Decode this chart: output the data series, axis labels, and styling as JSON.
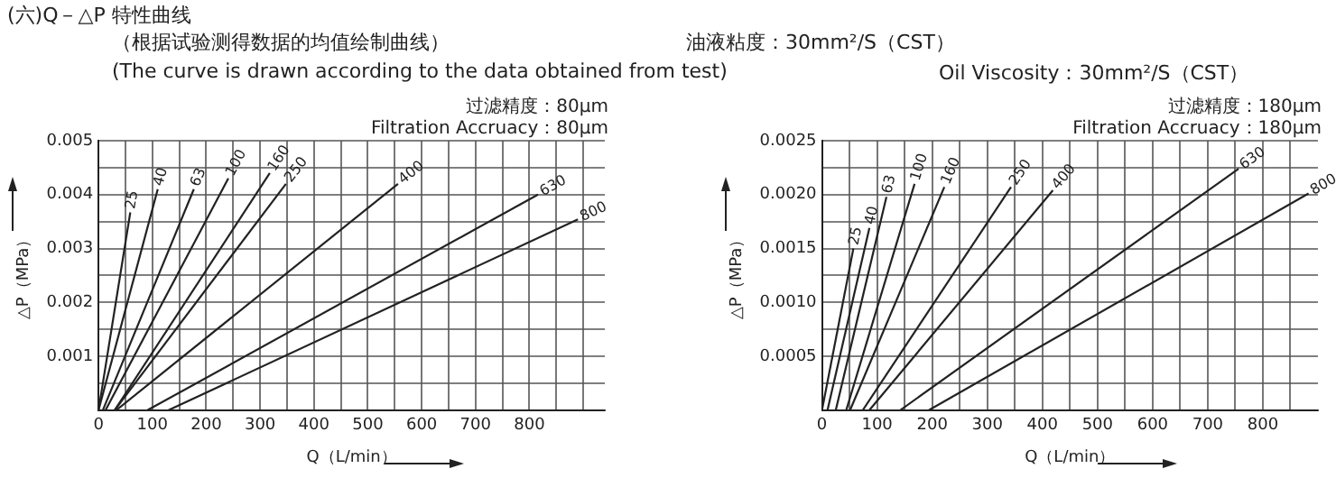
{
  "chart_data": [
    {
      "type": "line",
      "title": "(六)Q－△P 特性曲线",
      "subtitle": "过滤精度：80μm",
      "xlabel": "Q（L/min）",
      "ylabel": "△P（MPa）",
      "grid": true,
      "legend": false,
      "marker": "none",
      "annotations": [
        "（根据试验测得数据的均值绘制曲线）",
        "油液粘度：30mm²/S（CST）",
        "(The curve is drawn according to the data obtained from test)",
        "Oil Viscosity：30mm²/S（CST）",
        "Filtration Accruacy：80μm"
      ],
      "xlim": [
        0,
        940
      ],
      "ylim": [
        0,
        0.005
      ],
      "xticks": [
        0,
        {
          "value": 50,
          "label": null
        },
        100,
        {
          "value": 150,
          "label": null
        },
        200,
        {
          "value": 250,
          "label": null
        },
        300,
        {
          "value": 350,
          "label": null
        },
        400,
        {
          "value": 450,
          "label": null
        },
        500,
        {
          "value": 550,
          "label": null
        },
        600,
        {
          "value": 650,
          "label": null
        },
        700,
        {
          "value": 750,
          "label": null
        },
        800,
        {
          "value": 850,
          "label": null
        },
        {
          "value": 900,
          "label": null
        }
      ],
      "yticks": [
        {
          "value": 0,
          "label": null
        },
        {
          "value": 0.0005,
          "label": null
        },
        0.001,
        {
          "value": 0.0015,
          "label": null
        },
        0.002,
        {
          "value": 0.0025,
          "label": null
        },
        0.003,
        {
          "value": 0.0035,
          "label": null
        },
        0.004,
        {
          "value": 0.0045,
          "label": null
        },
        0.005
      ],
      "series": [
        {
          "name": "25",
          "color": "#222222",
          "x": [
            0,
            59
          ],
          "values": [
            0,
            0.00367
          ]
        },
        {
          "name": "40",
          "color": "#222222",
          "x": [
            0,
            110
          ],
          "values": [
            0,
            0.0041
          ]
        },
        {
          "name": "63",
          "color": "#222222",
          "x": [
            8,
            177
          ],
          "values": [
            0,
            0.0041
          ]
        },
        {
          "name": "100",
          "color": "#222222",
          "x": [
            13,
            241
          ],
          "values": [
            0,
            0.0043
          ]
        },
        {
          "name": "160",
          "color": "#222222",
          "x": [
            30,
            318
          ],
          "values": [
            0,
            0.0044
          ]
        },
        {
          "name": "250",
          "color": "#222222",
          "x": [
            30,
            348
          ],
          "values": [
            0,
            0.0042
          ]
        },
        {
          "name": "400",
          "color": "#222222",
          "x": [
            33,
            556
          ],
          "values": [
            0,
            0.0042
          ]
        },
        {
          "name": "630",
          "color": "#222222",
          "x": [
            91,
            816
          ],
          "values": [
            0,
            0.004
          ]
        },
        {
          "name": "800",
          "color": "#222222",
          "x": [
            130,
            890
          ],
          "values": [
            0,
            0.00354
          ]
        }
      ]
    },
    {
      "type": "line",
      "subtitle": "过滤精度：180μm",
      "xlabel": "Q（L/min）",
      "ylabel": "△P（MPa）",
      "grid": true,
      "legend": false,
      "marker": "none",
      "annotations": [
        "Filtration Accruacy：180μm"
      ],
      "xlim": [
        0,
        900
      ],
      "ylim": [
        0,
        0.0025
      ],
      "xticks": [
        0,
        {
          "value": 50,
          "label": null
        },
        100,
        {
          "value": 150,
          "label": null
        },
        200,
        {
          "value": 250,
          "label": null
        },
        300,
        {
          "value": 350,
          "label": null
        },
        400,
        {
          "value": 450,
          "label": null
        },
        500,
        {
          "value": 550,
          "label": null
        },
        600,
        {
          "value": 650,
          "label": null
        },
        700,
        {
          "value": 750,
          "label": null
        },
        800,
        {
          "value": 850,
          "label": null
        }
      ],
      "yticks": [
        {
          "value": 0,
          "label": null
        },
        {
          "value": 0.00025,
          "label": null
        },
        0.0005,
        {
          "value": 0.00075,
          "label": null
        },
        {
          "value": 0.001,
          "label": "0.0010"
        },
        {
          "value": 0.00125,
          "label": null
        },
        0.0015,
        {
          "value": 0.00175,
          "label": null
        },
        {
          "value": 0.002,
          "label": "0.0020"
        },
        {
          "value": 0.00225,
          "label": null
        },
        0.0025
      ],
      "series": [
        {
          "name": "25",
          "color": "#222222",
          "x": [
            0,
            57
          ],
          "values": [
            0,
            0.0015
          ]
        },
        {
          "name": "40",
          "color": "#222222",
          "x": [
            10,
            86
          ],
          "values": [
            0,
            0.00169
          ]
        },
        {
          "name": "63",
          "color": "#222222",
          "x": [
            25,
            117
          ],
          "values": [
            0,
            0.00198
          ]
        },
        {
          "name": "100",
          "color": "#222222",
          "x": [
            44,
            168
          ],
          "values": [
            0,
            0.0021
          ]
        },
        {
          "name": "160",
          "color": "#222222",
          "x": [
            51,
            222
          ],
          "values": [
            0,
            0.00207
          ]
        },
        {
          "name": "250",
          "color": "#222222",
          "x": [
            74,
            343
          ],
          "values": [
            0,
            0.00207
          ]
        },
        {
          "name": "400",
          "color": "#222222",
          "x": [
            86,
            419
          ],
          "values": [
            0,
            0.00204
          ]
        },
        {
          "name": "630",
          "color": "#222222",
          "x": [
            142,
            756
          ],
          "values": [
            0,
            0.00224
          ]
        },
        {
          "name": "800",
          "color": "#222222",
          "x": [
            194,
            883
          ],
          "values": [
            0,
            0.00201
          ]
        }
      ]
    }
  ]
}
